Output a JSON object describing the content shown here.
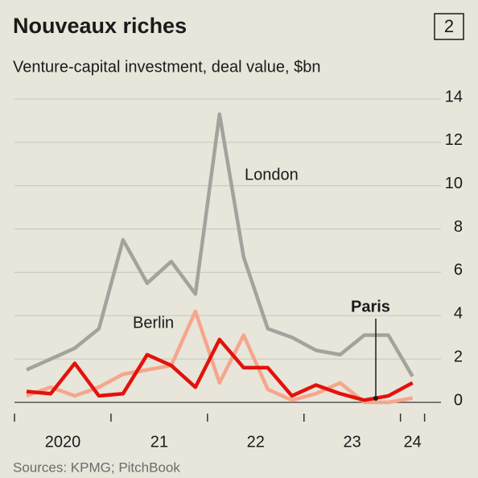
{
  "chart_data": {
    "type": "line",
    "title": "Nouveaux riches",
    "chart_number": "2",
    "subtitle": "Venture-capital investment, deal value, $bn",
    "source": "Sources: KPMG; PitchBook",
    "x": [
      2020.125,
      2020.375,
      2020.625,
      2020.875,
      2021.125,
      2021.375,
      2021.625,
      2021.875,
      2022.125,
      2022.375,
      2022.625,
      2022.875,
      2023.125,
      2023.375,
      2023.625,
      2023.875,
      2024.125
    ],
    "series": [
      {
        "name": "London",
        "color": "#a3a39e",
        "values": [
          1.5,
          2.0,
          2.5,
          3.4,
          7.5,
          5.5,
          6.5,
          5.0,
          13.3,
          6.7,
          3.4,
          3.0,
          2.4,
          2.2,
          3.1,
          3.1,
          1.2
        ]
      },
      {
        "name": "Berlin",
        "color": "#f5a68c",
        "values": [
          0.3,
          0.7,
          0.3,
          0.7,
          1.3,
          1.5,
          1.7,
          4.2,
          0.9,
          3.1,
          0.6,
          0.1,
          0.4,
          0.9,
          0,
          0,
          0.2
        ]
      },
      {
        "name": "Paris",
        "color": "#e3120b",
        "values": [
          0.5,
          0.4,
          1.8,
          0.3,
          0.4,
          2.2,
          1.7,
          0.7,
          2.9,
          1.6,
          1.6,
          0.3,
          0.8,
          0.4,
          0.1,
          0.3,
          0.9
        ]
      }
    ],
    "xlim": [
      2020,
      2024.42
    ],
    "xticks": [
      {
        "value": 2020.5,
        "label": "2020"
      },
      {
        "value": 2021.5,
        "label": "21"
      },
      {
        "value": 2022.5,
        "label": "22"
      },
      {
        "value": 2023.5,
        "label": "23"
      },
      {
        "value": 2024.125,
        "label": "24"
      }
    ],
    "xtick_marks": [
      2020,
      2021,
      2022,
      2023,
      2024,
      2024.25
    ],
    "ylim": [
      0,
      14
    ],
    "yticks": [
      0,
      2,
      4,
      6,
      8,
      10,
      12,
      14
    ],
    "grid": true
  }
}
